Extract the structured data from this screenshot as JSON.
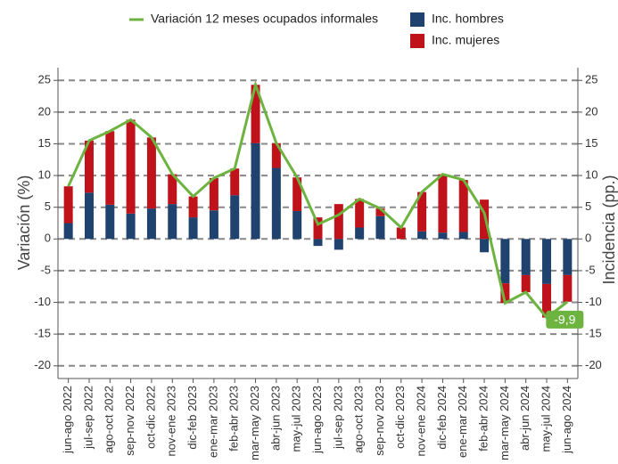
{
  "chart_data": {
    "type": "bar-line",
    "categories": [
      "jun-ago 2022",
      "jul-sep 2022",
      "ago-oct 2022",
      "sep-nov 2022",
      "oct-dic 2022",
      "nov-ene 2023",
      "dic-feb 2023",
      "ene-mar 2023",
      "feb-abr 2023",
      "mar-may 2023",
      "abr-jun 2023",
      "may-jul 2023",
      "jun-ago 2023",
      "jul-sep 2023",
      "ago-oct 2023",
      "sep-nov 2023",
      "oct-dic 2023",
      "nov-ene 2024",
      "dic-feb 2024",
      "ene-mar 2024",
      "feb-abr 2024",
      "mar-may 2024",
      "abr-jun 2024",
      "may-jul 2024",
      "jun-ago 2024"
    ],
    "series": [
      {
        "name": "Variación 12 meses ocupados informales",
        "type": "line",
        "color": "#6db33f",
        "values": [
          8.3,
          15.5,
          17,
          18.8,
          16,
          10.2,
          6.7,
          9.6,
          11.1,
          24.3,
          15.1,
          9.7,
          2.3,
          3.8,
          6.3,
          4.8,
          1.8,
          7.4,
          10.2,
          9.3,
          4.1,
          -10.1,
          -8.4,
          -12.4,
          -9.9
        ],
        "value_labels": [
          null,
          null,
          null,
          null,
          null,
          null,
          null,
          null,
          null,
          null,
          null,
          null,
          null,
          null,
          null,
          null,
          null,
          null,
          null,
          null,
          null,
          null,
          null,
          null,
          "-9,9"
        ]
      },
      {
        "name": "Inc. hombres",
        "type": "bar",
        "axis": "y2",
        "color": "#1f426e",
        "values": [
          2.5,
          7.3,
          5.4,
          4,
          4.8,
          5.5,
          3.4,
          4.5,
          6.9,
          15.1,
          11.2,
          4.4,
          -1.1,
          -1.7,
          1.8,
          3.6,
          0,
          1.2,
          1,
          1.1,
          -2.1,
          -7,
          -5.7,
          -7.1,
          -5.7
        ]
      },
      {
        "name": "Inc. mujeres",
        "type": "bar",
        "axis": "y2",
        "color": "#c0121b",
        "values": [
          5.8,
          8.2,
          11.6,
          14.8,
          11.2,
          4.7,
          3.3,
          5.1,
          4.2,
          9.2,
          3.9,
          5.3,
          3.4,
          5.5,
          4.5,
          1.2,
          1.8,
          6.2,
          9.2,
          8.2,
          6.2,
          -3.1,
          -2.7,
          -5.3,
          -4.2
        ]
      }
    ],
    "ylabel": "Variación (%)",
    "y2label": "Incidencia (pp.)",
    "ylim": [
      -22,
      27
    ],
    "yticks": [
      -20,
      -15,
      -10,
      -5,
      0,
      5,
      10,
      15,
      20,
      25
    ],
    "y2lim": [
      -22,
      27
    ],
    "y2ticks": [
      -20,
      -15,
      -10,
      -5,
      0,
      5,
      10,
      15,
      20,
      25
    ],
    "grid": true,
    "legend": "top"
  }
}
